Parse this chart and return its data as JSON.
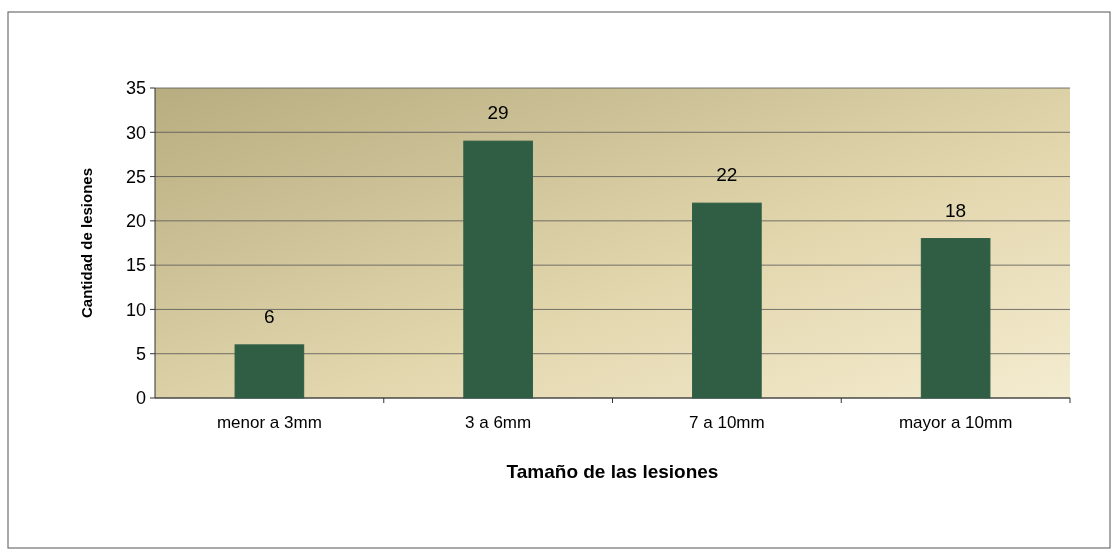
{
  "chart_data": {
    "type": "bar",
    "xlabel": "Tamaño de las lesiones",
    "ylabel": "Cantidad de lesiones",
    "categories": [
      "menor a 3mm",
      "3 a 6mm",
      "7 a 10mm",
      "mayor a 10mm"
    ],
    "values": [
      6,
      29,
      22,
      18
    ],
    "color": "#2f5e45",
    "ylim": [
      0,
      35
    ],
    "yticks": [
      0,
      5,
      10,
      15,
      20,
      25,
      30,
      35
    ],
    "grid": "y",
    "data_labels": true
  }
}
